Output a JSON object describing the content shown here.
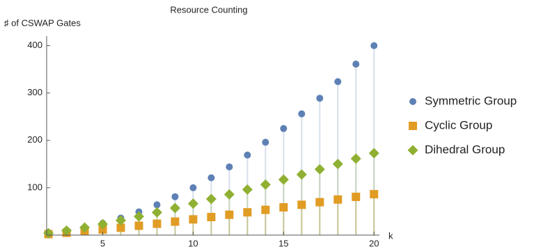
{
  "chart_data": {
    "type": "scatter",
    "title": "Resource Counting",
    "y_label": "♯ of CSWAP Gates",
    "x_label": "k",
    "x": [
      2,
      3,
      4,
      5,
      6,
      7,
      8,
      9,
      10,
      11,
      12,
      13,
      14,
      15,
      16,
      17,
      18,
      19,
      20
    ],
    "series": [
      {
        "name": "Symmetric Group",
        "color": "#5e81b5",
        "marker": "circle",
        "values": [
          4,
          9,
          16,
          25,
          36,
          49,
          64,
          81,
          100,
          121,
          144,
          169,
          196,
          225,
          256,
          289,
          324,
          361,
          400
        ]
      },
      {
        "name": "Cyclic Group",
        "color": "#e19c24",
        "marker": "square",
        "values": [
          2,
          4.8,
          8,
          11.6,
          15.5,
          19.7,
          24,
          28.5,
          33.2,
          38.1,
          43,
          48.1,
          53.3,
          58.6,
          64,
          69.5,
          75.1,
          80.7,
          86.4
        ]
      },
      {
        "name": "Dihedral Group",
        "color": "#8fb032",
        "marker": "diamond",
        "values": [
          4,
          9.5,
          16,
          23.2,
          31,
          39.3,
          48,
          57,
          66.4,
          76.1,
          86,
          96.2,
          106.6,
          117.2,
          128,
          139,
          150.1,
          161.4,
          172.9
        ]
      }
    ],
    "xlim": [
      1.9,
      20.3
    ],
    "ylim": [
      0,
      420
    ],
    "xticks": [
      5,
      10,
      15,
      20
    ],
    "yticks": [
      100,
      200,
      300,
      400
    ],
    "filling": "axis",
    "legend": "right"
  }
}
